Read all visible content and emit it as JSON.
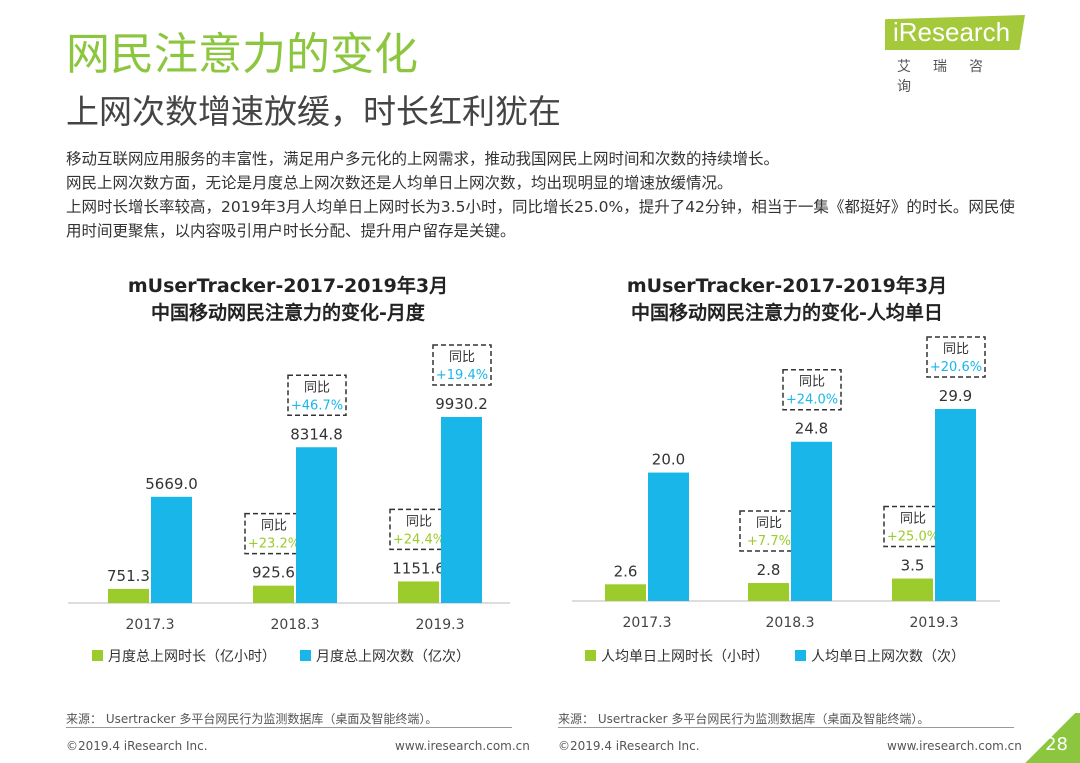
{
  "header": {
    "title": "网民注意力的变化",
    "subtitle": "上网次数增速放缓，时长红利犹在",
    "logo": "iResearch",
    "logo_cn": "艾瑞咨询"
  },
  "body": [
    "移动互联网应用服务的丰富性，满足用户多元化的上网需求，推动我国网民上网时间和次数的持续增长。",
    "网民上网次数方面，无论是月度总上网次数还是人均单日上网次数，均出现明显的增速放缓情况。",
    "上网时长增长率较高，2019年3月人均单日上网时长为3.5小时，同比增长25.0%，提升了42分钟，相当于一集《都挺好》的时长。网民使用时间更聚焦，以内容吸引用户时长分配、提升用户留存是关键。"
  ],
  "colors": {
    "green": "#9ccb2c",
    "blue": "#19b6ea",
    "title_green": "#8cc63f"
  },
  "chart_data": [
    {
      "type": "bar",
      "title": [
        "mUserTracker-2017-2019年3月",
        "中国移动网民注意力的变化-月度"
      ],
      "categories": [
        "2017.3",
        "2018.3",
        "2019.3"
      ],
      "series": [
        {
          "name": "月度总上网时长（亿小时）",
          "values": [
            751.3,
            925.6,
            1151.6
          ],
          "labels": [
            "751.3",
            "925.6",
            "1151.6"
          ],
          "yoy": [
            null,
            "+23.2%",
            "+24.4%"
          ]
        },
        {
          "name": "月度总上网次数（亿次）",
          "values": [
            5669.0,
            8314.8,
            9930.2
          ],
          "labels": [
            "5669.0",
            "8314.8",
            "9930.2"
          ],
          "yoy": [
            null,
            "+46.7%",
            "+19.4%"
          ]
        }
      ],
      "yoy_label": "同比",
      "ylim": [
        0,
        9930.2
      ]
    },
    {
      "type": "bar",
      "title": [
        "mUserTracker-2017-2019年3月",
        "中国移动网民注意力的变化-人均单日"
      ],
      "categories": [
        "2017.3",
        "2018.3",
        "2019.3"
      ],
      "series": [
        {
          "name": "人均单日上网时长（小时）",
          "values": [
            2.6,
            2.8,
            3.5
          ],
          "labels": [
            "2.6",
            "2.8",
            "3.5"
          ],
          "yoy": [
            null,
            "+7.7%",
            "+25.0%"
          ]
        },
        {
          "name": "人均单日上网次数（次）",
          "values": [
            20.0,
            24.8,
            29.9
          ],
          "labels": [
            "20.0",
            "24.8",
            "29.9"
          ],
          "yoy": [
            null,
            "+24.0%",
            "+20.6%"
          ]
        }
      ],
      "yoy_label": "同比",
      "ylim": [
        0,
        29.9
      ]
    }
  ],
  "footer": {
    "source": "来源： Usertracker 多平台网民行为监测数据库（桌面及智能终端）。",
    "copyright": "©2019.4 iResearch Inc.",
    "website": "www.iresearch.com.cn",
    "page": "28"
  }
}
